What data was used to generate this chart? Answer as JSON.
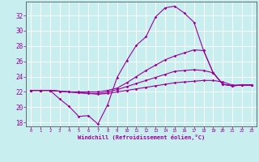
{
  "xlabel": "Windchill (Refroidissement éolien,°C)",
  "ylabel": "",
  "bg_color": "#c8eef0",
  "line_color": "#990099",
  "grid_color": "#ffffff",
  "xlim": [
    -0.5,
    23.5
  ],
  "ylim": [
    17.5,
    33.8
  ],
  "xticks": [
    0,
    1,
    2,
    3,
    4,
    5,
    6,
    7,
    8,
    9,
    10,
    11,
    12,
    13,
    14,
    15,
    16,
    17,
    18,
    19,
    20,
    21,
    22,
    23
  ],
  "yticks": [
    18,
    20,
    22,
    24,
    26,
    28,
    30,
    32
  ],
  "x": [
    0,
    1,
    2,
    3,
    4,
    5,
    6,
    7,
    8,
    9,
    10,
    11,
    12,
    13,
    14,
    15,
    16,
    17,
    18,
    19,
    20,
    21,
    22,
    23
  ],
  "line1": [
    22.2,
    22.2,
    22.2,
    21.1,
    20.1,
    18.8,
    18.9,
    17.8,
    20.3,
    23.9,
    26.1,
    28.1,
    29.2,
    31.8,
    33.0,
    33.2,
    32.3,
    31.1,
    27.4,
    24.5,
    23.0,
    22.8,
    22.9,
    22.9
  ],
  "line2": [
    22.2,
    22.2,
    22.2,
    22.1,
    22.0,
    22.0,
    22.0,
    22.0,
    22.2,
    22.5,
    23.2,
    24.0,
    24.8,
    25.5,
    26.2,
    26.7,
    27.1,
    27.5,
    27.4,
    24.5,
    23.0,
    22.8,
    22.9,
    22.9
  ],
  "line3": [
    22.2,
    22.2,
    22.2,
    22.1,
    22.0,
    21.9,
    21.8,
    21.8,
    22.0,
    22.3,
    22.7,
    23.1,
    23.5,
    23.9,
    24.3,
    24.7,
    24.8,
    24.9,
    24.8,
    24.5,
    23.0,
    22.8,
    22.9,
    22.9
  ],
  "line4": [
    22.2,
    22.2,
    22.2,
    22.1,
    22.0,
    21.9,
    21.8,
    21.7,
    21.8,
    22.0,
    22.2,
    22.4,
    22.6,
    22.8,
    23.0,
    23.2,
    23.3,
    23.4,
    23.5,
    23.5,
    23.3,
    22.9,
    22.9,
    22.9
  ]
}
